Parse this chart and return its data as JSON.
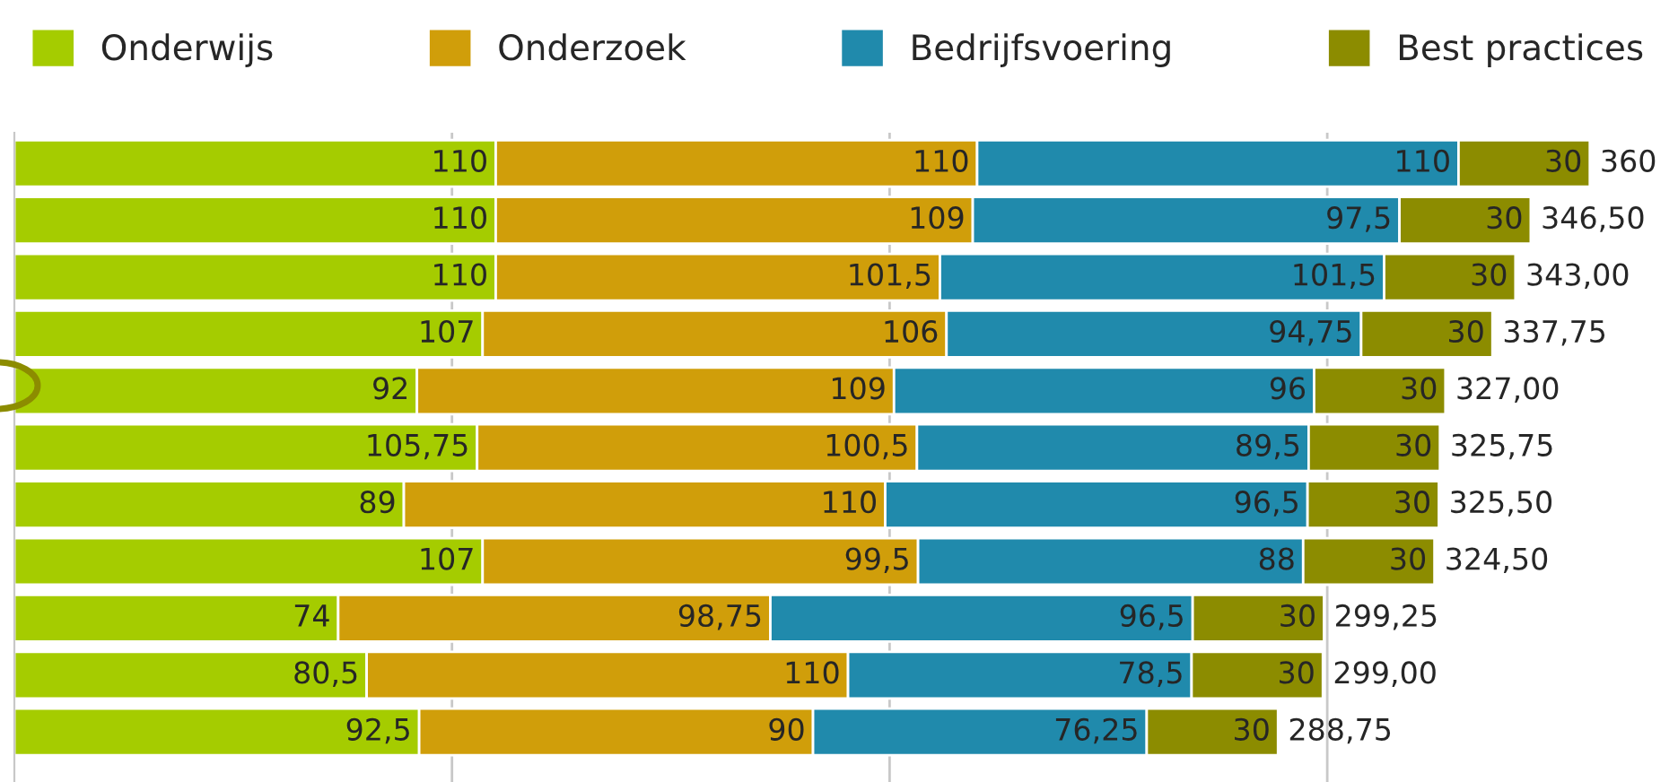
{
  "chart_data": {
    "type": "bar",
    "orientation": "horizontal",
    "stacked": true,
    "categories": [
      null,
      null,
      null,
      null,
      null,
      null,
      null,
      null,
      null,
      null,
      null
    ],
    "series": [
      {
        "name": "Onderwijs",
        "color": "#a5cc00",
        "values": [
          110,
          110,
          110,
          107,
          92,
          105.75,
          89,
          107,
          74,
          80.5,
          92.5
        ],
        "value_labels": [
          "110",
          "110",
          "110",
          "107",
          "92",
          "105,75",
          "89",
          "107",
          "74",
          "80,5",
          "92,5"
        ]
      },
      {
        "name": "Onderzoek",
        "color": "#d09e0a",
        "values": [
          110,
          109,
          101.5,
          106,
          109,
          100.5,
          110,
          99.5,
          98.75,
          110,
          90
        ],
        "value_labels": [
          "110",
          "109",
          "101,5",
          "106",
          "109",
          "100,5",
          "110",
          "99,5",
          "98,75",
          "110",
          "90"
        ]
      },
      {
        "name": "Bedrijfsvoering",
        "color": "#208aac",
        "values": [
          110,
          97.5,
          101.5,
          94.75,
          96,
          89.5,
          96.5,
          88,
          96.5,
          78.5,
          76.25
        ],
        "value_labels": [
          "110",
          "97,5",
          "101,5",
          "94,75",
          "96",
          "89,5",
          "96,5",
          "88",
          "96,5",
          "78,5",
          "76,25"
        ]
      },
      {
        "name": "Best practices",
        "color": "#8c8c00",
        "values": [
          30,
          30,
          30,
          30,
          30,
          30,
          30,
          30,
          30,
          30,
          30
        ],
        "value_labels": [
          "30",
          "30",
          "30",
          "30",
          "30",
          "30",
          "30",
          "30",
          "30",
          "30",
          "30"
        ]
      }
    ],
    "totals": [
      "360",
      "346,50",
      "343,00",
      "337,75",
      "327,00",
      "325,75",
      "325,50",
      "324,50",
      "299,25",
      "299,00",
      "288,75"
    ],
    "xticks": [
      {
        "value": 100,
        "label": null
      },
      {
        "value": 200,
        "label": null
      },
      {
        "value": 300,
        "label": null
      }
    ],
    "grid": "x",
    "legend": "top"
  }
}
